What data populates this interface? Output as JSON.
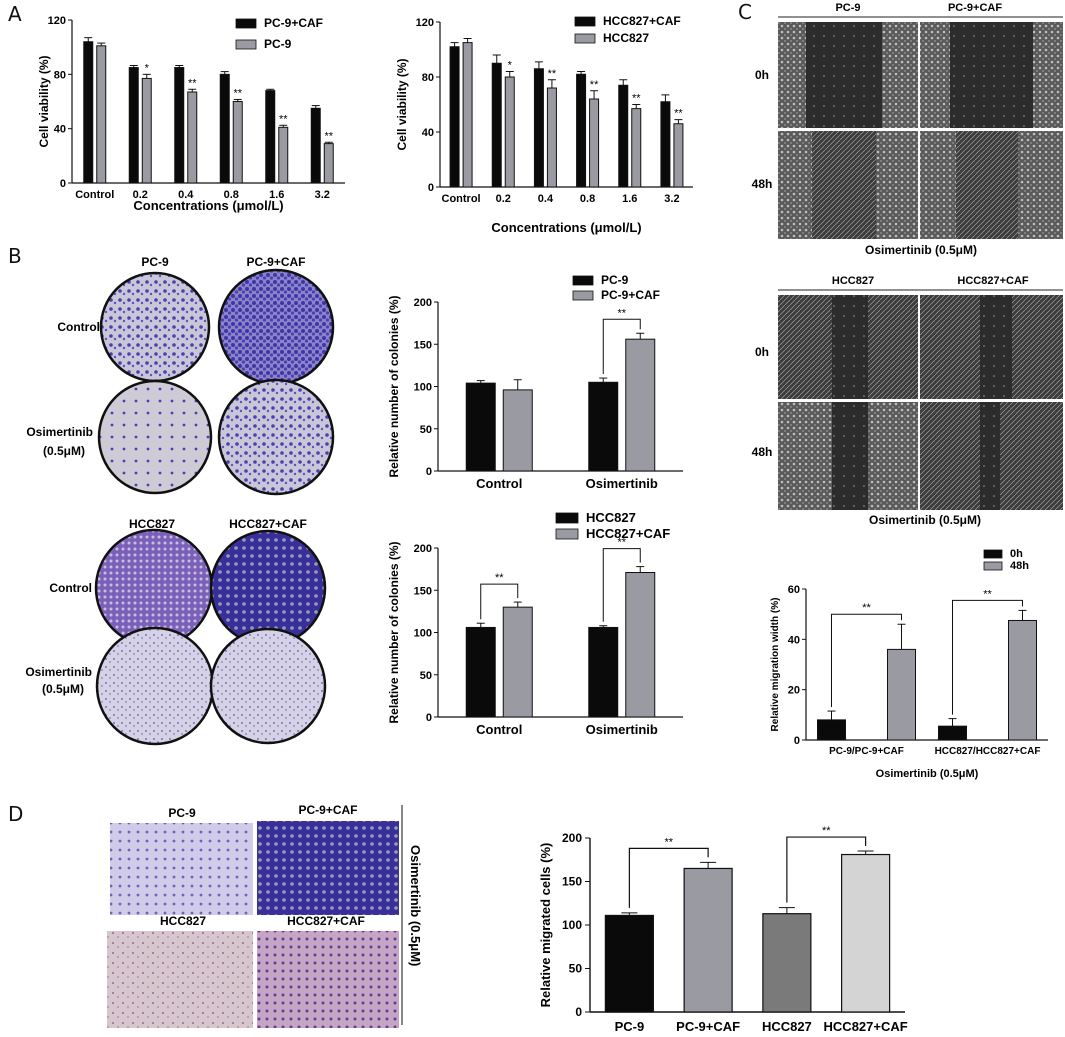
{
  "panel_letters": {
    "A": "A",
    "B": "B",
    "C": "C",
    "D": "D"
  },
  "colors": {
    "black": "#0a0a0a",
    "gray": "#9a9aa2",
    "dark_gray": "#7a7a7a",
    "light_gray": "#d4d4d4",
    "stain_purple": "#4a40b0",
    "stain_violet": "#6a4aa8",
    "micro_bg": "#3a3a3a"
  },
  "panel_A": {
    "left": {
      "legend": [
        "PC-9+CAF",
        "PC-9"
      ],
      "ylabel": "Cell viability (%)",
      "xlabel": "Concentrations (μmol/L)",
      "categories": [
        "Control",
        "0.2",
        "0.4",
        "0.8",
        "1.6",
        "3.2"
      ],
      "yticks": [
        "0",
        "40",
        "80",
        "120"
      ],
      "ylim": [
        0,
        120
      ],
      "series": [
        {
          "name": "PC-9+CAF",
          "values": [
            104,
            85,
            85,
            80,
            68,
            55
          ],
          "err": [
            3,
            1.5,
            1.5,
            2,
            1,
            2
          ]
        },
        {
          "name": "PC-9",
          "values": [
            101,
            77,
            67,
            60,
            41,
            29
          ],
          "err": [
            2,
            3,
            2,
            1.5,
            1.5,
            1
          ]
        }
      ],
      "sig": [
        "",
        "*",
        "**",
        "**",
        "**",
        "**"
      ]
    },
    "right": {
      "legend": [
        "HCC827+CAF",
        "HCC827"
      ],
      "ylabel": "Cell viability (%)",
      "xlabel": "Concentrations (μmol/L)",
      "categories": [
        "Control",
        "0.2",
        "0.4",
        "0.8",
        "1.6",
        "3.2"
      ],
      "yticks": [
        "0",
        "40",
        "80",
        "120"
      ],
      "ylim": [
        0,
        120
      ],
      "series": [
        {
          "name": "HCC827+CAF",
          "values": [
            102,
            90,
            86,
            82,
            74,
            62
          ],
          "err": [
            3,
            6,
            5,
            2,
            4,
            5
          ]
        },
        {
          "name": "HCC827",
          "values": [
            105,
            80,
            72,
            64,
            57,
            46
          ],
          "err": [
            3,
            4,
            6,
            6,
            3,
            3
          ]
        }
      ],
      "sig": [
        "",
        "*",
        "**",
        "**",
        "**",
        "**"
      ]
    }
  },
  "panel_B": {
    "top_headers": [
      "PC-9",
      "PC-9+CAF"
    ],
    "bottom_headers": [
      "HCC827",
      "HCC827+CAF"
    ],
    "row_labels": [
      "Control",
      "Osimertinib",
      "(0.5μM)"
    ],
    "chart_top": {
      "legend": [
        "PC-9",
        "PC-9+CAF"
      ],
      "ylabel": "Relative number of colonies (%)",
      "categories": [
        "Control",
        "Osimertinib"
      ],
      "yticks": [
        "0",
        "50",
        "100",
        "150",
        "200"
      ],
      "ylim": [
        0,
        200
      ],
      "series": [
        {
          "name": "PC-9",
          "values": [
            104,
            105
          ],
          "err": [
            3,
            5
          ]
        },
        {
          "name": "PC-9+CAF",
          "values": [
            96,
            156
          ],
          "err": [
            12,
            7
          ]
        }
      ],
      "sig": [
        "**"
      ]
    },
    "chart_bottom": {
      "legend": [
        "HCC827",
        "HCC827+CAF"
      ],
      "ylabel": "Relative number of colonies (%)",
      "categories": [
        "Control",
        "Osimertinib"
      ],
      "yticks": [
        "0",
        "50",
        "100",
        "150",
        "200"
      ],
      "ylim": [
        0,
        200
      ],
      "series": [
        {
          "name": "HCC827",
          "values": [
            106,
            106
          ],
          "err": [
            5,
            2
          ]
        },
        {
          "name": "HCC827+CAF",
          "values": [
            130,
            171
          ],
          "err": [
            6,
            7
          ]
        }
      ],
      "sig": [
        "**",
        "**"
      ]
    }
  },
  "panel_C": {
    "top_headers": [
      "PC-9",
      "PC-9+CAF"
    ],
    "bottom_headers": [
      "HCC827",
      "HCC827+CAF"
    ],
    "row_labels": [
      "0h",
      "48h"
    ],
    "caption": "Osimertinib (0.5μM)",
    "chart": {
      "legend": [
        "0h",
        "48h"
      ],
      "ylabel": "Relative migration width (%)",
      "xlabel": "Osimertinib (0.5μM)",
      "categories": [
        "PC-9/PC-9+CAF",
        "HCC827/HCC827+CAF"
      ],
      "yticks": [
        "0",
        "20",
        "40",
        "60"
      ],
      "ylim": [
        0,
        60
      ],
      "series": [
        {
          "name": "0h",
          "values": [
            8,
            5.5
          ],
          "err": [
            3.5,
            3
          ]
        },
        {
          "name": "48h",
          "values": [
            36,
            47.5
          ],
          "err": [
            10,
            4
          ]
        }
      ],
      "sig": [
        "**",
        "**"
      ]
    }
  },
  "panel_D": {
    "headers_top": [
      "PC-9",
      "PC-9+CAF"
    ],
    "headers_bottom": [
      "HCC827",
      "HCC827+CAF"
    ],
    "side_label": "Osimertinib (0.5μM)",
    "chart": {
      "ylabel": "Relative migrated cells (%)",
      "categories": [
        "PC-9",
        "PC-9+CAF",
        "HCC827",
        "HCC827+CAF"
      ],
      "yticks": [
        "0",
        "50",
        "100",
        "150",
        "200"
      ],
      "ylim": [
        0,
        200
      ],
      "values": [
        111,
        165,
        113,
        181
      ],
      "err": [
        3,
        7,
        7,
        4
      ],
      "sig": [
        "**",
        "**"
      ]
    }
  },
  "chart_data": [
    {
      "type": "bar",
      "title": "",
      "xlabel": "Concentrations (μmol/L)",
      "ylabel": "Cell viability (%)",
      "categories": [
        "Control",
        "0.2",
        "0.4",
        "0.8",
        "1.6",
        "3.2"
      ],
      "ylim": [
        0,
        120
      ],
      "series": [
        {
          "name": "PC-9+CAF",
          "values": [
            104,
            85,
            85,
            80,
            68,
            55
          ]
        },
        {
          "name": "PC-9",
          "values": [
            101,
            77,
            67,
            60,
            41,
            29
          ]
        }
      ],
      "legend": "top-right"
    },
    {
      "type": "bar",
      "title": "",
      "xlabel": "Concentrations (μmol/L)",
      "ylabel": "Cell viability (%)",
      "categories": [
        "Control",
        "0.2",
        "0.4",
        "0.8",
        "1.6",
        "3.2"
      ],
      "ylim": [
        0,
        120
      ],
      "series": [
        {
          "name": "HCC827+CAF",
          "values": [
            102,
            90,
            86,
            82,
            74,
            62
          ]
        },
        {
          "name": "HCC827",
          "values": [
            105,
            80,
            72,
            64,
            57,
            46
          ]
        }
      ],
      "legend": "top-right"
    },
    {
      "type": "bar",
      "title": "",
      "xlabel": "",
      "ylabel": "Relative number of colonies (%)",
      "categories": [
        "Control",
        "Osimertinib"
      ],
      "ylim": [
        0,
        200
      ],
      "series": [
        {
          "name": "PC-9",
          "values": [
            104,
            105
          ]
        },
        {
          "name": "PC-9+CAF",
          "values": [
            96,
            156
          ]
        }
      ],
      "legend": "top-right"
    },
    {
      "type": "bar",
      "title": "",
      "xlabel": "",
      "ylabel": "Relative number of colonies (%)",
      "categories": [
        "Control",
        "Osimertinib"
      ],
      "ylim": [
        0,
        200
      ],
      "series": [
        {
          "name": "HCC827",
          "values": [
            106,
            106
          ]
        },
        {
          "name": "HCC827+CAF",
          "values": [
            130,
            171
          ]
        }
      ],
      "legend": "top-right"
    },
    {
      "type": "bar",
      "title": "",
      "xlabel": "Osimertinib (0.5μM)",
      "ylabel": "Relative migration width (%)",
      "categories": [
        "PC-9/PC-9+CAF",
        "HCC827/HCC827+CAF"
      ],
      "ylim": [
        0,
        60
      ],
      "series": [
        {
          "name": "0h",
          "values": [
            8,
            5.5
          ]
        },
        {
          "name": "48h",
          "values": [
            36,
            47.5
          ]
        }
      ],
      "legend": "top-right"
    },
    {
      "type": "bar",
      "title": "",
      "xlabel": "",
      "ylabel": "Relative migrated cells (%)",
      "categories": [
        "PC-9",
        "PC-9+CAF",
        "HCC827",
        "HCC827+CAF"
      ],
      "ylim": [
        0,
        200
      ],
      "values": [
        111,
        165,
        113,
        181
      ]
    }
  ]
}
